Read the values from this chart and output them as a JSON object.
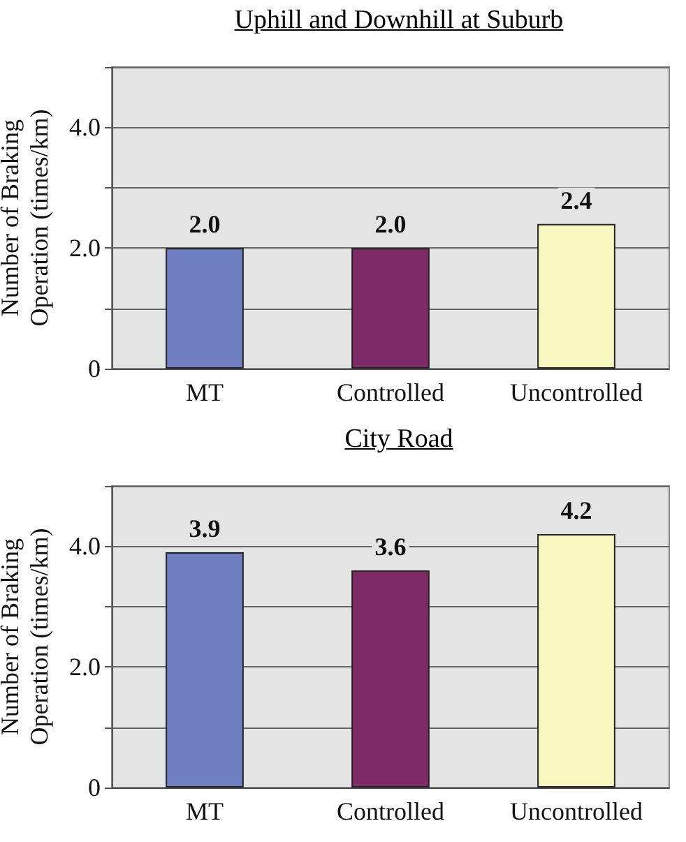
{
  "chart_data": [
    {
      "type": "bar",
      "title": "Uphill and Downhill at Suburb",
      "ylabel": "Number of Braking Operation (times/km)",
      "categories": [
        "MT",
        "Controlled",
        "Uncontrolled"
      ],
      "values": [
        2.0,
        2.0,
        2.4
      ],
      "colors": [
        "#6f7fc2",
        "#7e2a66",
        "#f8f8c0"
      ],
      "value_labels": [
        "2.0",
        "2.0",
        "2.4"
      ],
      "ylim": [
        0,
        5
      ],
      "yticks": [
        {
          "value": 0,
          "label": "0"
        },
        {
          "value": 1,
          "label": null
        },
        {
          "value": 2,
          "label": "2.0"
        },
        {
          "value": 3,
          "label": null
        },
        {
          "value": 4,
          "label": "4.0"
        },
        {
          "value": 5,
          "label": null
        }
      ],
      "grid": "y"
    },
    {
      "type": "bar",
      "title": "City Road",
      "ylabel": "Number of Braking Operation (times/km)",
      "categories": [
        "MT",
        "Controlled",
        "Uncontrolled"
      ],
      "values": [
        3.9,
        3.6,
        4.2
      ],
      "colors": [
        "#6f7fc2",
        "#7e2a66",
        "#f8f8c0"
      ],
      "value_labels": [
        "3.9",
        "3.6",
        "4.2"
      ],
      "ylim": [
        0,
        5
      ],
      "yticks": [
        {
          "value": 0,
          "label": "0"
        },
        {
          "value": 1,
          "label": null
        },
        {
          "value": 2,
          "label": "2.0"
        },
        {
          "value": 3,
          "label": null
        },
        {
          "value": 4,
          "label": "4.0"
        },
        {
          "value": 5,
          "label": null
        }
      ],
      "grid": "y"
    }
  ]
}
